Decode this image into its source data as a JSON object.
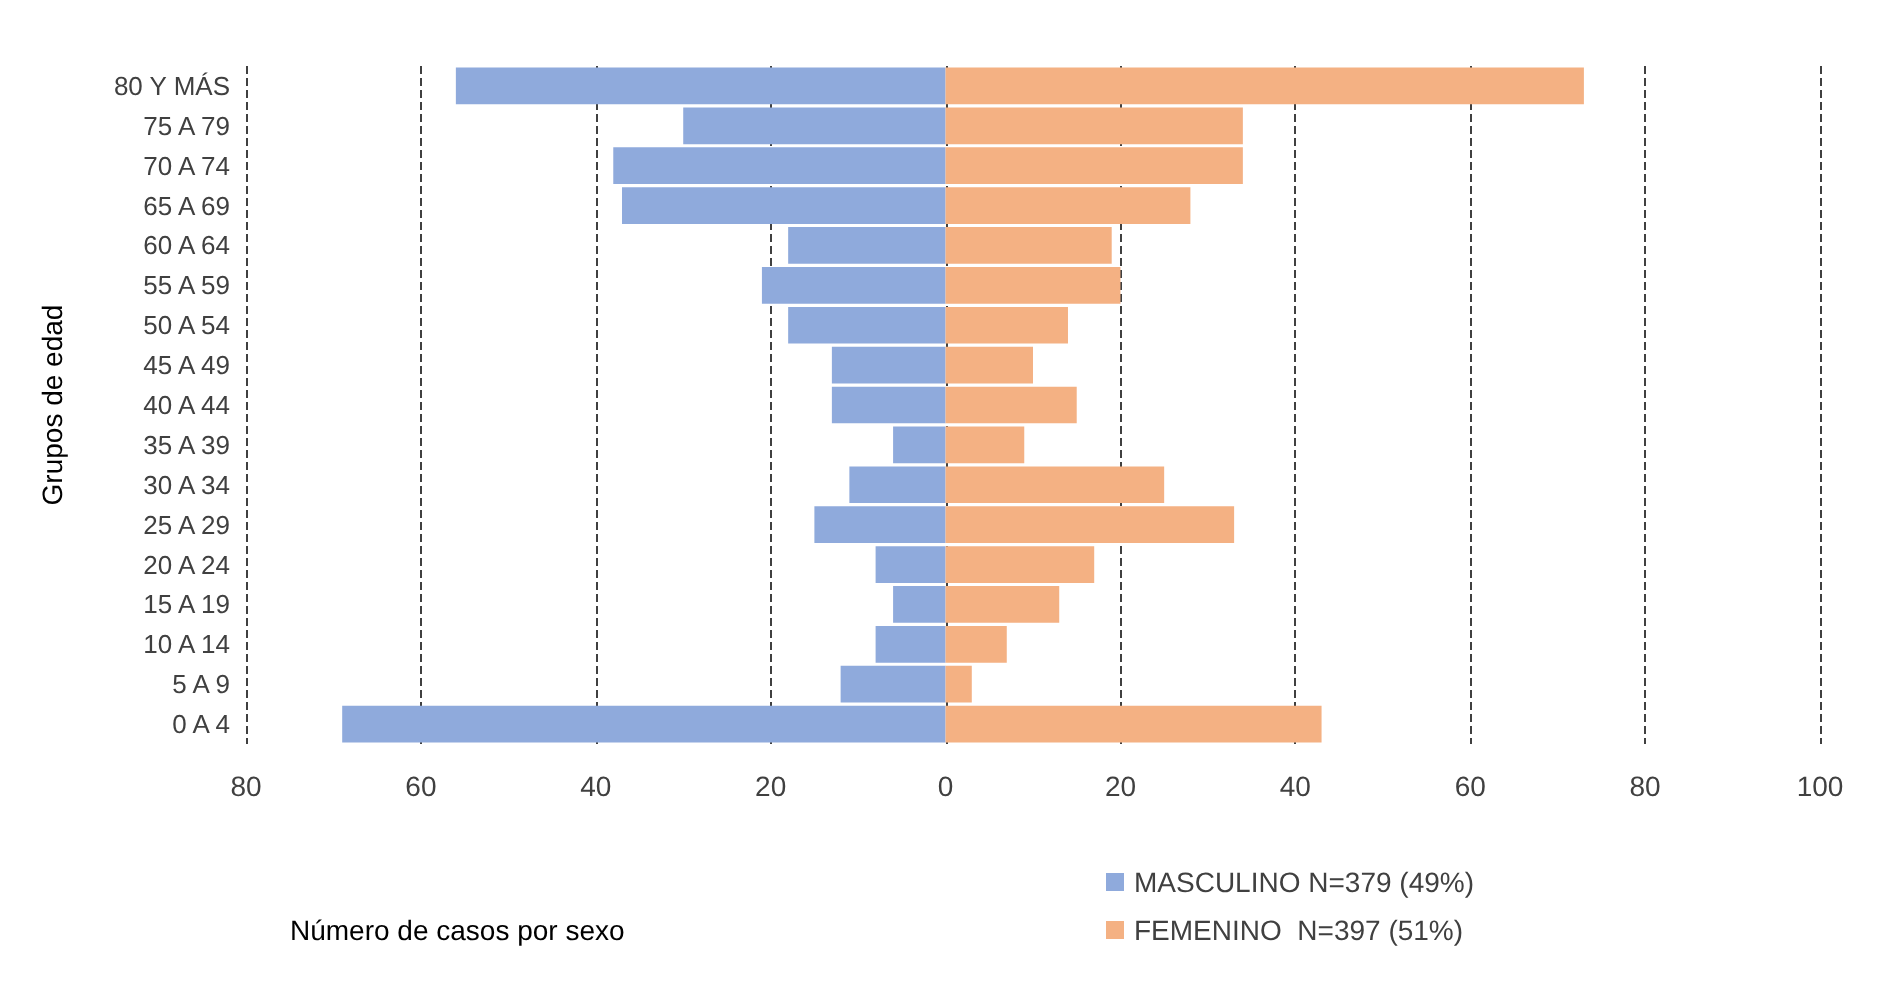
{
  "chart_data": {
    "type": "bar",
    "orientation": "horizontal",
    "stacked": true,
    "categories": [
      "80 Y MÁS",
      "75 A 79",
      "70 A 74",
      "65 A 69",
      "60 A 64",
      "55 A 59",
      "50 A 54",
      "45 A 49",
      "40 A 44",
      "35 A 39",
      "30 A 34",
      "25 A 29",
      "20 A 24",
      "15 A 19",
      "10 A 14",
      "5 A 9",
      "0 A 4"
    ],
    "series": [
      {
        "name": "MASCULINO N=379 (49%)",
        "color": "#8faadc",
        "values": [
          -56,
          -30,
          -38,
          -37,
          -18,
          -21,
          -18,
          -13,
          -13,
          -6,
          -11,
          -15,
          -8,
          -6,
          -8,
          -12,
          -69
        ]
      },
      {
        "name": "FEMENINO  N=397 (51%)",
        "color": "#f4b183",
        "values": [
          73,
          34,
          34,
          28,
          19,
          20,
          14,
          10,
          15,
          9,
          25,
          33,
          17,
          13,
          7,
          3,
          43
        ]
      }
    ],
    "xlim": [
      -80,
      100
    ],
    "xticks": [
      {
        "value": -80,
        "label": "80"
      },
      {
        "value": -60,
        "label": "60"
      },
      {
        "value": -40,
        "label": "40"
      },
      {
        "value": -20,
        "label": "20"
      },
      0,
      20,
      40,
      60,
      80,
      100
    ],
    "xlabel": "Número de casos por sexo",
    "ylabel": "Grupos de edad",
    "grid": "x",
    "legend": "bottom right"
  }
}
